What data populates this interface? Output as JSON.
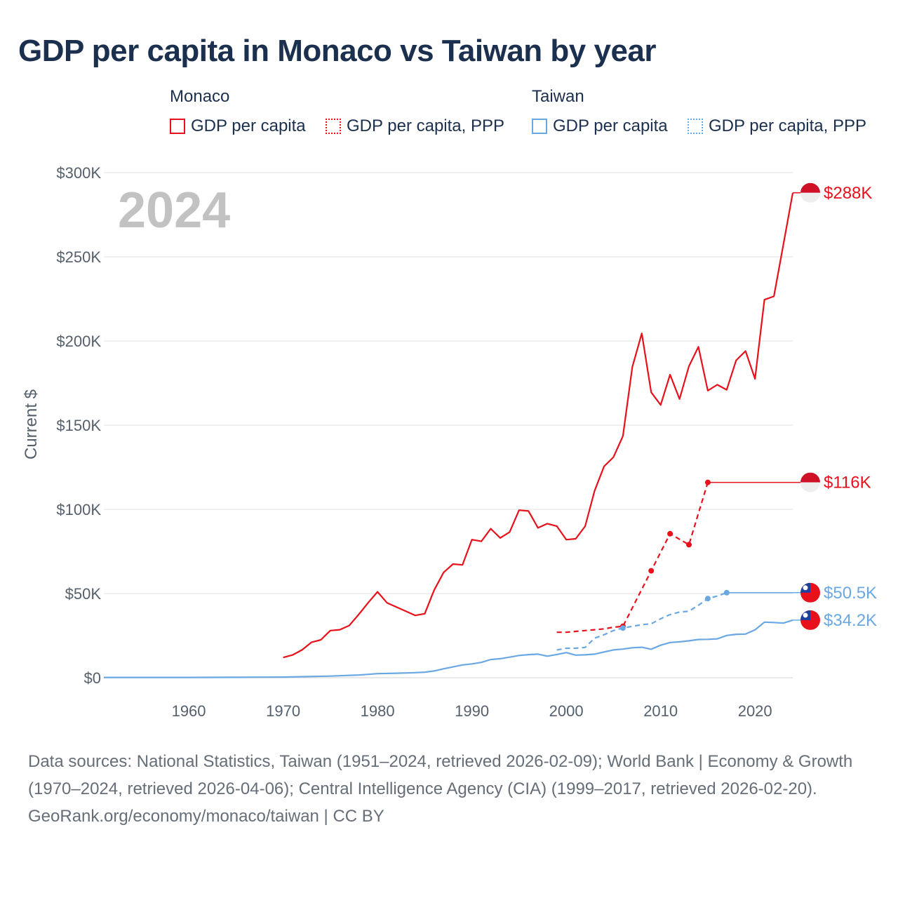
{
  "title": "GDP per capita in Monaco vs Taiwan by year",
  "legend": {
    "groups": [
      {
        "name": "Monaco",
        "items": [
          "GDP per capita",
          "GDP per capita, PPP"
        ]
      },
      {
        "name": "Taiwan",
        "items": [
          "GDP per capita",
          "GDP per capita, PPP"
        ]
      }
    ]
  },
  "colors": {
    "monaco": "#e8111b",
    "taiwan": "#6aa8e4",
    "title": "#1b2f4e",
    "grid": "#e6e6e6"
  },
  "chart_data": {
    "type": "line",
    "title": "GDP per capita in Monaco vs Taiwan by year",
    "ylabel": "Current $",
    "xlabel": "",
    "ylim": [
      0,
      300000
    ],
    "xlim": [
      1951,
      2024
    ],
    "year_label": "2024",
    "x_ticks": [
      1960,
      1970,
      1980,
      1990,
      2000,
      2010,
      2020
    ],
    "y_ticks": [
      {
        "value": 0,
        "label": "$0"
      },
      {
        "value": 50000,
        "label": "$50K"
      },
      {
        "value": 100000,
        "label": "$100K"
      },
      {
        "value": 150000,
        "label": "$150K"
      },
      {
        "value": 200000,
        "label": "$200K"
      },
      {
        "value": 250000,
        "label": "$250K"
      },
      {
        "value": 300000,
        "label": "$300K"
      }
    ],
    "series": [
      {
        "name": "Monaco GDP per capita",
        "country": "monaco",
        "style": "solid",
        "markers": false,
        "end_label": "$288K",
        "end_value": 288000,
        "points": [
          [
            1970,
            12000
          ],
          [
            1971,
            13500
          ],
          [
            1972,
            16500
          ],
          [
            1973,
            21000
          ],
          [
            1974,
            22500
          ],
          [
            1975,
            28000
          ],
          [
            1976,
            28500
          ],
          [
            1977,
            31000
          ],
          [
            1978,
            37500
          ],
          [
            1979,
            44500
          ],
          [
            1980,
            51000
          ],
          [
            1981,
            44500
          ],
          [
            1982,
            42000
          ],
          [
            1983,
            39500
          ],
          [
            1984,
            37000
          ],
          [
            1985,
            38000
          ],
          [
            1986,
            52000
          ],
          [
            1987,
            62500
          ],
          [
            1988,
            67500
          ],
          [
            1989,
            67000
          ],
          [
            1990,
            82000
          ],
          [
            1991,
            81000
          ],
          [
            1992,
            88500
          ],
          [
            1993,
            83000
          ],
          [
            1994,
            86500
          ],
          [
            1995,
            99500
          ],
          [
            1996,
            99000
          ],
          [
            1997,
            89000
          ],
          [
            1998,
            91500
          ],
          [
            1999,
            90000
          ],
          [
            2000,
            82000
          ],
          [
            2001,
            82500
          ],
          [
            2002,
            90000
          ],
          [
            2003,
            111000
          ],
          [
            2004,
            125500
          ],
          [
            2005,
            131000
          ],
          [
            2006,
            143500
          ],
          [
            2007,
            184500
          ],
          [
            2008,
            204500
          ],
          [
            2009,
            169500
          ],
          [
            2010,
            162000
          ],
          [
            2011,
            180000
          ],
          [
            2012,
            165500
          ],
          [
            2013,
            185000
          ],
          [
            2014,
            196500
          ],
          [
            2015,
            170500
          ],
          [
            2016,
            174000
          ],
          [
            2017,
            171000
          ],
          [
            2018,
            188500
          ],
          [
            2019,
            194000
          ],
          [
            2020,
            177500
          ],
          [
            2021,
            224500
          ],
          [
            2022,
            226500
          ],
          [
            2023,
            257000
          ],
          [
            2024,
            288000
          ]
        ]
      },
      {
        "name": "Monaco GDP per capita, PPP",
        "country": "monaco",
        "style": "dashed",
        "markers": true,
        "end_label": "$116K",
        "end_value": 116000,
        "points": [
          [
            1999,
            27000
          ],
          [
            2000,
            27000
          ],
          [
            2001,
            27500
          ],
          [
            2002,
            28000
          ],
          [
            2003,
            28500
          ],
          [
            2004,
            29000
          ],
          [
            2005,
            30000
          ],
          [
            2006,
            30500
          ],
          [
            2009,
            63500
          ],
          [
            2011,
            85500
          ],
          [
            2013,
            79000
          ],
          [
            2015,
            116000
          ]
        ]
      },
      {
        "name": "Taiwan GDP per capita, PPP",
        "country": "taiwan",
        "style": "dashed",
        "markers": true,
        "end_label": "$50.5K",
        "end_value": 50500,
        "points": [
          [
            1999,
            16500
          ],
          [
            2000,
            17500
          ],
          [
            2001,
            17500
          ],
          [
            2002,
            18000
          ],
          [
            2003,
            23500
          ],
          [
            2004,
            25500
          ],
          [
            2005,
            28000
          ],
          [
            2006,
            29500
          ],
          [
            2007,
            30500
          ],
          [
            2008,
            31500
          ],
          [
            2009,
            32000
          ],
          [
            2010,
            35000
          ],
          [
            2011,
            37500
          ],
          [
            2012,
            39000
          ],
          [
            2013,
            39500
          ],
          [
            2014,
            43000
          ],
          [
            2015,
            47000
          ],
          [
            2016,
            48500
          ],
          [
            2017,
            50500
          ]
        ]
      },
      {
        "name": "Taiwan GDP per capita",
        "country": "taiwan",
        "style": "solid",
        "markers": false,
        "end_label": "$34.2K",
        "end_value": 34200,
        "points": [
          [
            1951,
            150
          ],
          [
            1955,
            180
          ],
          [
            1960,
            160
          ],
          [
            1965,
            230
          ],
          [
            1970,
            390
          ],
          [
            1975,
            970
          ],
          [
            1976,
            1150
          ],
          [
            1978,
            1600
          ],
          [
            1980,
            2400
          ],
          [
            1982,
            2650
          ],
          [
            1984,
            3000
          ],
          [
            1985,
            3300
          ],
          [
            1986,
            4000
          ],
          [
            1987,
            5300
          ],
          [
            1988,
            6400
          ],
          [
            1989,
            7600
          ],
          [
            1990,
            8200
          ],
          [
            1991,
            9100
          ],
          [
            1992,
            10800
          ],
          [
            1993,
            11300
          ],
          [
            1994,
            12200
          ],
          [
            1995,
            13200
          ],
          [
            1996,
            13700
          ],
          [
            1997,
            14000
          ],
          [
            1998,
            12800
          ],
          [
            1999,
            13800
          ],
          [
            2000,
            14900
          ],
          [
            2001,
            13400
          ],
          [
            2002,
            13600
          ],
          [
            2003,
            14000
          ],
          [
            2004,
            15300
          ],
          [
            2005,
            16500
          ],
          [
            2006,
            17000
          ],
          [
            2007,
            17800
          ],
          [
            2008,
            18100
          ],
          [
            2009,
            16900
          ],
          [
            2010,
            19300
          ],
          [
            2011,
            20900
          ],
          [
            2012,
            21300
          ],
          [
            2013,
            21900
          ],
          [
            2014,
            22700
          ],
          [
            2015,
            22800
          ],
          [
            2016,
            23100
          ],
          [
            2017,
            25100
          ],
          [
            2018,
            25800
          ],
          [
            2019,
            25900
          ],
          [
            2020,
            28400
          ],
          [
            2021,
            33000
          ],
          [
            2022,
            32800
          ],
          [
            2023,
            32400
          ],
          [
            2024,
            34200
          ]
        ]
      }
    ]
  },
  "footer": {
    "sources": "Data sources: National Statistics, Taiwan (1951–2024, retrieved 2026-02-09); World Bank | Economy & Growth (1970–2024, retrieved 2026-04-06); Central Intelligence Agency (CIA) (1999–2017, retrieved 2026-02-20).",
    "credit": "GeoRank.org/economy/monaco/taiwan | CC BY"
  }
}
